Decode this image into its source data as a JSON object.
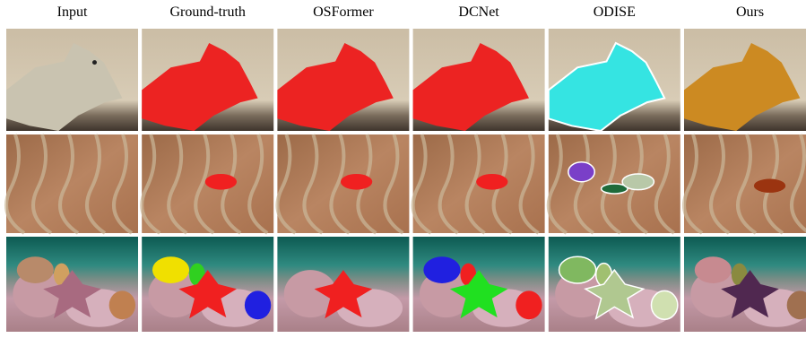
{
  "columns": [
    "Input",
    "Ground-truth",
    "OSFormer",
    "DCNet",
    "ODISE",
    "Ours"
  ]
}
